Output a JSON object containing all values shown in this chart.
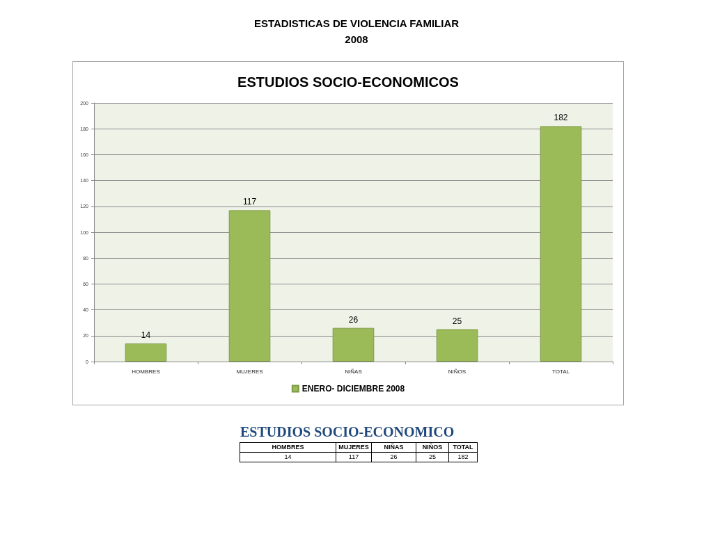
{
  "chart_data": [
    {
      "type": "bar",
      "title": "ESTUDIOS SOCIO-ECONOMICOS",
      "annotations": [
        "ESTADISTICAS DE VIOLENCIA FAMILIAR",
        "2008"
      ],
      "categories": [
        "HOMBRES",
        "MUJERES",
        "NIÑAS",
        "NIÑOS",
        "TOTAL"
      ],
      "series": [
        {
          "name": "ENERO- DICIEMBRE 2008",
          "color": "#9bbb59",
          "values": [
            14,
            117,
            26,
            25,
            182
          ]
        }
      ],
      "ylim": [
        0,
        200
      ],
      "yticks": [
        0,
        20,
        40,
        60,
        80,
        100,
        120,
        140,
        160,
        180,
        200
      ],
      "grid": "y",
      "legend": "bottom",
      "data_labels": true
    },
    {
      "type": "other",
      "title": "ESTUDIOS SOCIO-ECONOMICO",
      "categories": [
        "HOMBRES",
        "MUJERES",
        "NIÑAS",
        "NIÑOS",
        "TOTAL"
      ],
      "values": [
        14,
        117,
        26,
        25,
        182
      ],
      "data_labels": true
    }
  ]
}
